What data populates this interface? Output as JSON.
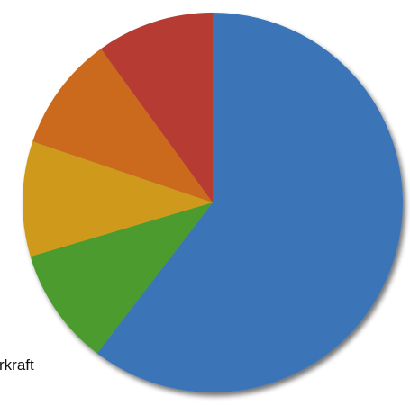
{
  "chart_data": {
    "type": "pie",
    "start_angle_deg": 0,
    "direction": "clockwise",
    "slices": [
      {
        "label": "",
        "value": 60.4,
        "color": "#3b74b8"
      },
      {
        "label": "",
        "value": 10.0,
        "color": "#4c9b2f"
      },
      {
        "label": "",
        "value": 9.8,
        "color": "#cf9a1a"
      },
      {
        "label": "",
        "value": 9.8,
        "color": "#cb6a1d"
      },
      {
        "label": "",
        "value": 10.0,
        "color": "#b63a33"
      }
    ],
    "labels": [
      {
        "text": "rkraft",
        "slice_index": 1
      }
    ]
  }
}
